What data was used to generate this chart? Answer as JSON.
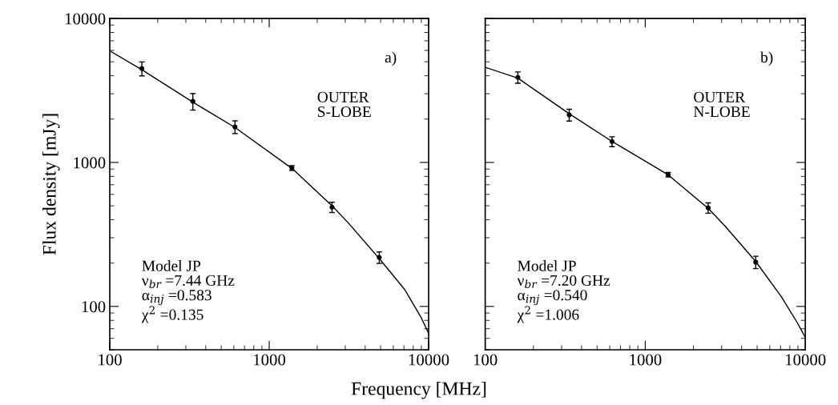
{
  "chart_data": [
    {
      "type": "scatter",
      "xlabel": "Frequency [MHz]",
      "ylabel": "Flux density [mJy]",
      "log": "xy",
      "xlim": [
        100,
        10000
      ],
      "ylim": [
        50,
        10000
      ],
      "xticks": [
        100,
        1000,
        10000
      ],
      "yticks": [
        100,
        1000,
        10000
      ],
      "grid": false,
      "legend": false,
      "annotations": [
        "a)",
        "OUTER\nS-LOBE",
        "Model JP\nν$_{br}$ =7.44 GHz\nα$_{inj}$ =0.583\nχ$^{2}$ =0.135"
      ],
      "series": [
        {
          "marker": "circle",
          "color": "#000000",
          "x": [
            159,
            332,
            610,
            1388,
            2477,
            4900
          ],
          "values": [
            4490,
            2660,
            1766,
            915,
            489,
            219
          ],
          "errors": [
            500,
            350,
            180,
            35,
            40,
            20
          ]
        },
        {
          "type": "line",
          "color": "#000000",
          "line_style": "solid",
          "x": [
            100,
            159,
            332,
            610,
            1388,
            2477,
            3162,
            4900,
            7079,
            8913,
            10000
          ],
          "values": [
            5960,
            4400,
            2620,
            1750,
            910,
            500,
            376,
            215,
            131,
            85,
            65
          ]
        }
      ]
    },
    {
      "type": "scatter",
      "log": "xy",
      "xlim": [
        100,
        10000
      ],
      "ylim": [
        50,
        10000
      ],
      "xticks": [
        100,
        1000,
        10000
      ],
      "yticks": [
        100,
        1000,
        10000
      ],
      "tick_labels": "x",
      "grid": false,
      "legend": false,
      "annotations": [
        "b)",
        "OUTER\nN-LOBE",
        "Model JP\nν$_{br}$ =7.20 GHz\nα$_{inj}$ =0.540\nχ$^{2}$ =1.006"
      ],
      "series": [
        {
          "marker": "circle",
          "color": "#000000",
          "x": [
            160,
            335,
            620,
            1390,
            2472,
            4900
          ],
          "values": [
            3900,
            2140,
            1397,
            823,
            484,
            203
          ],
          "errors": [
            350,
            200,
            110,
            30,
            40,
            20
          ]
        },
        {
          "type": "line",
          "color": "#000000",
          "line_style": "solid",
          "x": [
            100,
            160,
            335,
            620,
            1390,
            2472,
            3162,
            4900,
            7079,
            8913,
            10000
          ],
          "values": [
            4580,
            3850,
            2180,
            1400,
            820,
            480,
            360,
            205,
            117,
            77,
            61
          ]
        }
      ]
    }
  ]
}
